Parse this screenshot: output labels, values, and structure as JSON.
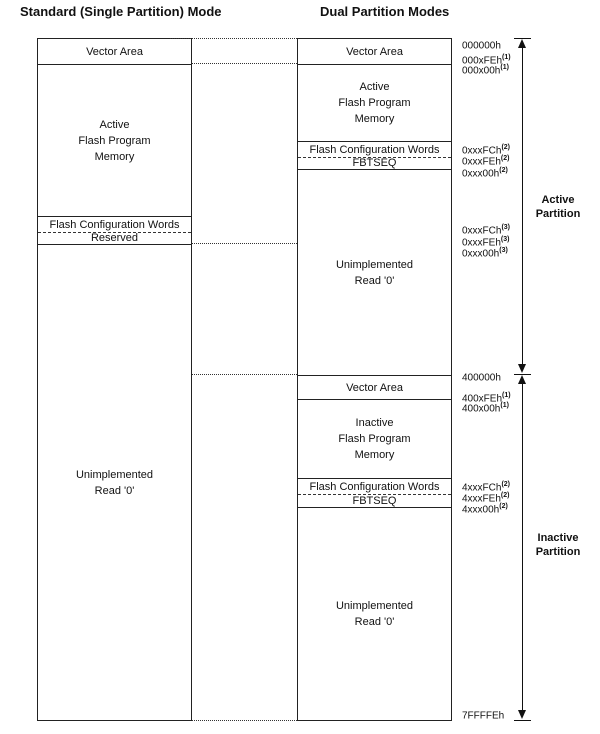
{
  "headings": {
    "standard": "Standard (Single Partition) Mode",
    "dual": "Dual Partition Modes"
  },
  "standard_blocks": [
    "Vector Area",
    "Active\nFlash Program\nMemory",
    "Flash Configuration Words",
    "Reserved",
    "Unimplemented\nRead '0'"
  ],
  "dual_blocks": [
    "Vector Area",
    "Active\nFlash Program\nMemory",
    "Flash Configuration Words",
    "FBTSEQ",
    "Unimplemented\nRead '0'",
    "Vector Area",
    "Inactive\nFlash Program\nMemory",
    "Flash Configuration Words",
    "FBTSEQ",
    "Unimplemented\nRead '0'"
  ],
  "addresses": [
    {
      "text": "000000h",
      "note": ""
    },
    {
      "text": "000xFEh",
      "note": "(1)"
    },
    {
      "text": "000x00h",
      "note": "(1)"
    },
    {
      "text": "0xxxFCh",
      "note": "(2)"
    },
    {
      "text": "0xxxFEh",
      "note": "(2)"
    },
    {
      "text": "0xxx00h",
      "note": "(2)"
    },
    {
      "text": "0xxxFCh",
      "note": "(3)"
    },
    {
      "text": "0xxxFEh",
      "note": "(3)"
    },
    {
      "text": "0xxx00h",
      "note": "(3)"
    },
    {
      "text": "400000h",
      "note": ""
    },
    {
      "text": "400xFEh",
      "note": "(1)"
    },
    {
      "text": "400x00h",
      "note": "(1)"
    },
    {
      "text": "4xxxFCh",
      "note": "(2)"
    },
    {
      "text": "4xxxFEh",
      "note": "(2)"
    },
    {
      "text": "4xxx00h",
      "note": "(2)"
    },
    {
      "text": "7FFFFEh",
      "note": ""
    }
  ],
  "partitions": {
    "active": "Active\nPartition",
    "inactive": "Inactive\nPartition"
  }
}
